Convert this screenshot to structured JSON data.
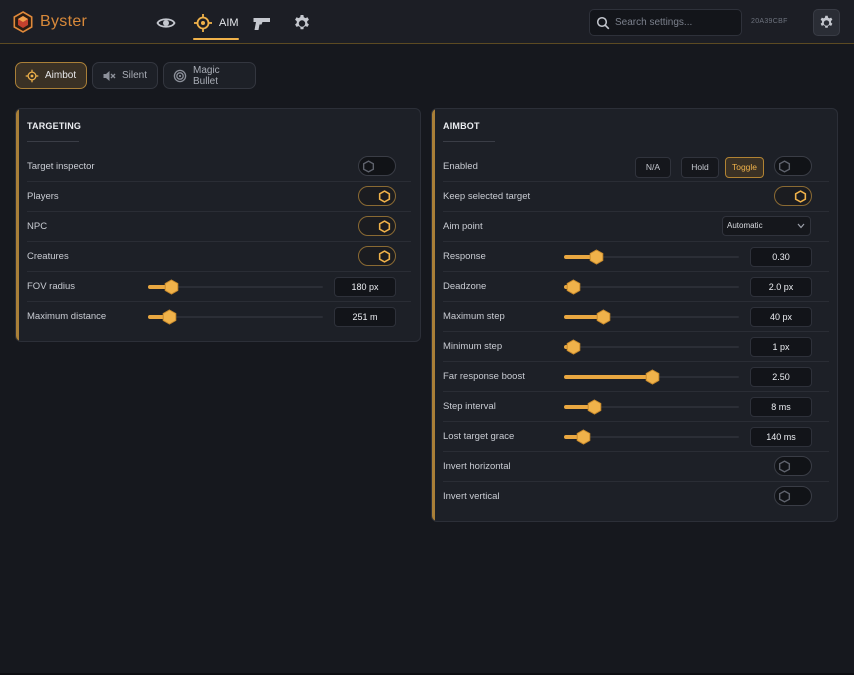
{
  "app": {
    "name": "Byster",
    "build_id": "20A39CBF"
  },
  "nav": {
    "aim_label": "AIM"
  },
  "search": {
    "placeholder": "Search settings..."
  },
  "modes": [
    {
      "label": "Aimbot",
      "active": true
    },
    {
      "label": "Silent",
      "active": false
    },
    {
      "label": "Magic Bullet",
      "active": false
    }
  ],
  "targeting": {
    "title": "TARGETING",
    "rows": [
      {
        "label": "Target inspector",
        "on": false
      },
      {
        "label": "Players",
        "on": true
      },
      {
        "label": "NPC",
        "on": true
      },
      {
        "label": "Creatures",
        "on": true
      },
      {
        "label": "FOV radius",
        "value": "180 px",
        "fraction": 0.13
      },
      {
        "label": "Maximum distance",
        "value": "251 m",
        "fraction": 0.12
      }
    ]
  },
  "aimbot": {
    "title": "AIMBOT",
    "enabled": {
      "label": "Enabled",
      "options": [
        "N/A",
        "Hold",
        "Toggle"
      ],
      "selected": "Toggle",
      "on": false
    },
    "keep_target": {
      "label": "Keep selected target",
      "on": true
    },
    "aim_point": {
      "label": "Aim point",
      "value": "Automatic"
    },
    "sliders": [
      {
        "label": "Response",
        "value": "0.30",
        "fraction": 0.18
      },
      {
        "label": "Deadzone",
        "value": "2.0 px",
        "fraction": 0.05
      },
      {
        "label": "Maximum step",
        "value": "40 px",
        "fraction": 0.22
      },
      {
        "label": "Minimum step",
        "value": "1 px",
        "fraction": 0.05
      },
      {
        "label": "Far response boost",
        "value": "2.50",
        "fraction": 0.5
      },
      {
        "label": "Step interval",
        "value": "8 ms",
        "fraction": 0.17
      },
      {
        "label": "Lost target grace",
        "value": "140 ms",
        "fraction": 0.11
      }
    ],
    "invert_horizontal": {
      "label": "Invert horizontal",
      "on": false
    },
    "invert_vertical": {
      "label": "Invert vertical",
      "on": false
    }
  },
  "colors": {
    "accent": "#f0b24a",
    "slider_fill": "#e9a741",
    "panel_bg": "#1d2027",
    "page_bg": "#16181e"
  }
}
